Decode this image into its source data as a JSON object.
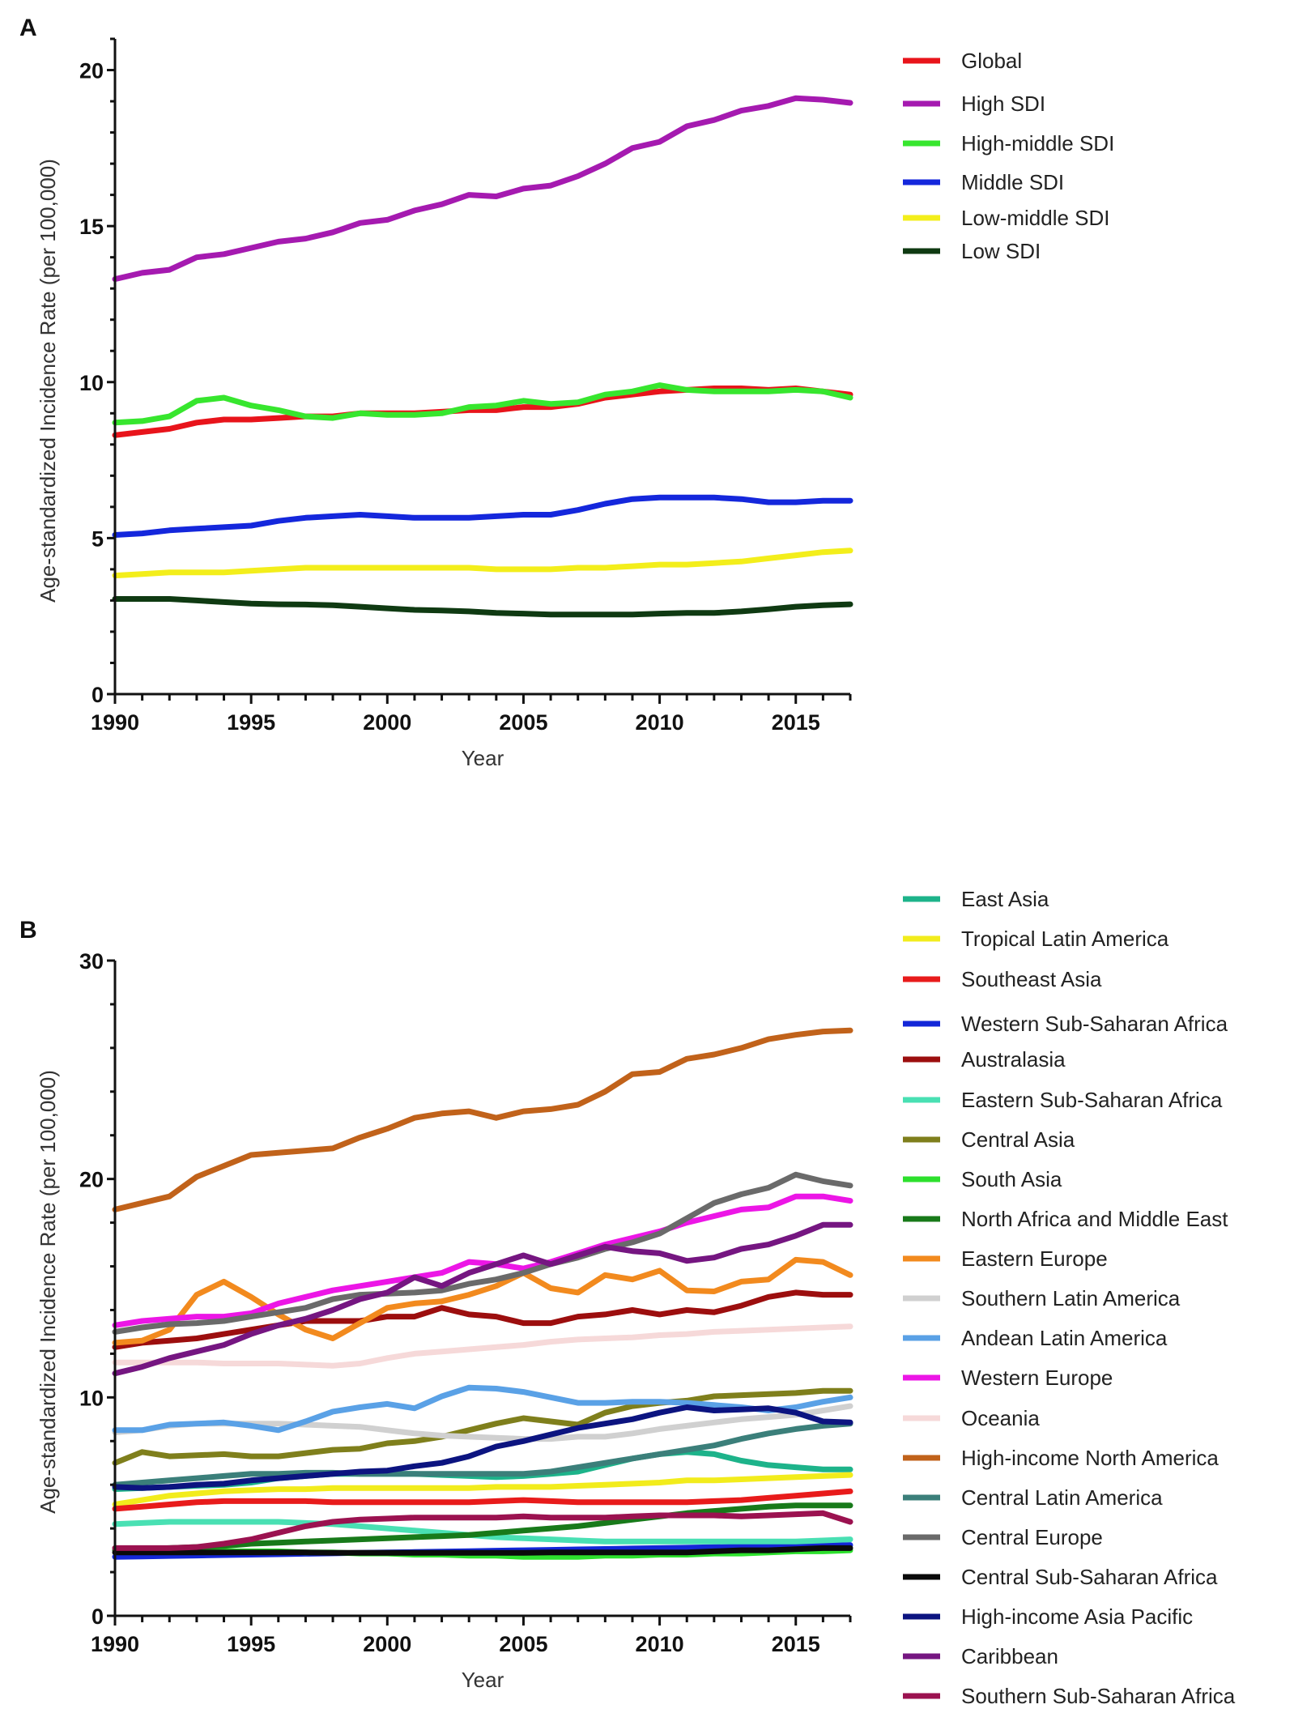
{
  "panels": [
    {
      "letter": "A",
      "xlabel": "Year",
      "ylabel": "Age-standardized Incidence Rate (per 100,000)"
    },
    {
      "letter": "B",
      "xlabel": "Year",
      "ylabel": "Age-standardized Incidence Rate (per 100,000)"
    }
  ],
  "chart_data": [
    {
      "type": "line",
      "panel": "A",
      "title": "",
      "xlabel": "Year",
      "ylabel": "Age-standardized Incidence Rate (per 100,000)",
      "x": [
        1990,
        1991,
        1992,
        1993,
        1994,
        1995,
        1996,
        1997,
        1998,
        1999,
        2000,
        2001,
        2002,
        2003,
        2004,
        2005,
        2006,
        2007,
        2008,
        2009,
        2010,
        2011,
        2012,
        2013,
        2014,
        2015,
        2016,
        2017
      ],
      "xlim": [
        1990,
        2017
      ],
      "ylim": [
        0,
        21
      ],
      "xticks": [
        1990,
        1995,
        2000,
        2005,
        2010,
        2015
      ],
      "yticks": [
        0,
        5,
        10,
        15,
        20
      ],
      "grid": false,
      "legend_position": "right",
      "series": [
        {
          "name": "Global",
          "color": "#e8141b",
          "values": [
            8.3,
            8.4,
            8.5,
            8.7,
            8.8,
            8.8,
            8.85,
            8.9,
            8.9,
            9.0,
            9.0,
            9.0,
            9.05,
            9.1,
            9.1,
            9.2,
            9.2,
            9.3,
            9.5,
            9.6,
            9.7,
            9.75,
            9.8,
            9.8,
            9.75,
            9.8,
            9.7,
            9.6
          ]
        },
        {
          "name": "High SDI",
          "color": "#a51ab0",
          "values": [
            13.3,
            13.5,
            13.6,
            14.0,
            14.1,
            14.3,
            14.5,
            14.6,
            14.8,
            15.1,
            15.2,
            15.5,
            15.7,
            16.0,
            15.95,
            16.2,
            16.3,
            16.6,
            17.0,
            17.5,
            17.7,
            18.2,
            18.4,
            18.7,
            18.85,
            19.1,
            19.05,
            18.95
          ]
        },
        {
          "name": "High-middle SDI",
          "color": "#37e62e",
          "values": [
            8.7,
            8.75,
            8.9,
            9.4,
            9.5,
            9.25,
            9.1,
            8.9,
            8.85,
            9.0,
            8.95,
            8.95,
            9.0,
            9.2,
            9.25,
            9.4,
            9.3,
            9.35,
            9.6,
            9.7,
            9.9,
            9.75,
            9.7,
            9.7,
            9.7,
            9.75,
            9.7,
            9.5
          ]
        },
        {
          "name": "Middle SDI",
          "color": "#1427dc",
          "values": [
            5.1,
            5.15,
            5.25,
            5.3,
            5.35,
            5.4,
            5.55,
            5.65,
            5.7,
            5.75,
            5.7,
            5.65,
            5.65,
            5.65,
            5.7,
            5.75,
            5.75,
            5.9,
            6.1,
            6.25,
            6.3,
            6.3,
            6.3,
            6.25,
            6.15,
            6.15,
            6.2,
            6.2
          ]
        },
        {
          "name": "Low-middle SDI",
          "color": "#f3ee1b",
          "values": [
            3.8,
            3.85,
            3.9,
            3.9,
            3.9,
            3.95,
            4.0,
            4.05,
            4.05,
            4.05,
            4.05,
            4.05,
            4.05,
            4.05,
            4.0,
            4.0,
            4.0,
            4.05,
            4.05,
            4.1,
            4.15,
            4.15,
            4.2,
            4.25,
            4.35,
            4.45,
            4.55,
            4.6
          ]
        },
        {
          "name": "Low SDI",
          "color": "#0f3a12",
          "values": [
            3.05,
            3.05,
            3.05,
            3.0,
            2.95,
            2.9,
            2.88,
            2.87,
            2.85,
            2.8,
            2.75,
            2.7,
            2.68,
            2.65,
            2.6,
            2.58,
            2.55,
            2.55,
            2.55,
            2.55,
            2.58,
            2.6,
            2.6,
            2.65,
            2.72,
            2.8,
            2.85,
            2.88
          ]
        }
      ]
    },
    {
      "type": "line",
      "panel": "B",
      "title": "",
      "xlabel": "Year",
      "ylabel": "Age-standardized Incidence Rate (per 100,000)",
      "x": [
        1990,
        1991,
        1992,
        1993,
        1994,
        1995,
        1996,
        1997,
        1998,
        1999,
        2000,
        2001,
        2002,
        2003,
        2004,
        2005,
        2006,
        2007,
        2008,
        2009,
        2010,
        2011,
        2012,
        2013,
        2014,
        2015,
        2016,
        2017
      ],
      "xlim": [
        1990,
        2017
      ],
      "ylim": [
        0,
        30
      ],
      "xticks": [
        1990,
        1995,
        2000,
        2005,
        2010,
        2015
      ],
      "yticks": [
        0,
        10,
        20,
        30
      ],
      "grid": false,
      "legend_position": "right",
      "series": [
        {
          "name": "East Asia",
          "color": "#1db38a",
          "values": [
            5.8,
            5.85,
            5.9,
            5.95,
            6.0,
            6.1,
            6.3,
            6.4,
            6.5,
            6.5,
            6.5,
            6.5,
            6.45,
            6.4,
            6.35,
            6.4,
            6.5,
            6.6,
            6.9,
            7.2,
            7.4,
            7.5,
            7.4,
            7.1,
            6.9,
            6.8,
            6.7,
            6.7
          ]
        },
        {
          "name": "Tropical Latin America",
          "color": "#f2ec1c",
          "values": [
            5.1,
            5.3,
            5.5,
            5.6,
            5.7,
            5.75,
            5.8,
            5.8,
            5.85,
            5.85,
            5.85,
            5.85,
            5.85,
            5.85,
            5.9,
            5.9,
            5.9,
            5.95,
            6.0,
            6.05,
            6.1,
            6.2,
            6.2,
            6.25,
            6.3,
            6.35,
            6.4,
            6.45
          ]
        },
        {
          "name": "Southeast Asia",
          "color": "#e81b1b",
          "values": [
            4.9,
            5.0,
            5.1,
            5.2,
            5.25,
            5.25,
            5.25,
            5.25,
            5.2,
            5.2,
            5.2,
            5.2,
            5.2,
            5.2,
            5.25,
            5.3,
            5.25,
            5.2,
            5.2,
            5.2,
            5.2,
            5.2,
            5.25,
            5.3,
            5.4,
            5.5,
            5.6,
            5.7
          ]
        },
        {
          "name": "Western Sub-Saharan Africa",
          "color": "#1327d8",
          "values": [
            2.7,
            2.72,
            2.74,
            2.76,
            2.78,
            2.8,
            2.82,
            2.84,
            2.86,
            2.88,
            2.9,
            2.92,
            2.94,
            2.96,
            2.98,
            3.0,
            3.02,
            3.04,
            3.06,
            3.08,
            3.1,
            3.12,
            3.14,
            3.16,
            3.18,
            3.2,
            3.22,
            3.24
          ]
        },
        {
          "name": "Australasia",
          "color": "#9c0e0e",
          "values": [
            12.3,
            12.5,
            12.6,
            12.7,
            12.9,
            13.1,
            13.3,
            13.5,
            13.5,
            13.5,
            13.7,
            13.7,
            14.1,
            13.8,
            13.7,
            13.4,
            13.4,
            13.7,
            13.8,
            14.0,
            13.8,
            14.0,
            13.9,
            14.2,
            14.6,
            14.8,
            14.7,
            14.7
          ]
        },
        {
          "name": "Eastern Sub-Saharan Africa",
          "color": "#49e0b3",
          "values": [
            4.2,
            4.25,
            4.3,
            4.3,
            4.3,
            4.3,
            4.3,
            4.25,
            4.2,
            4.1,
            4.0,
            3.9,
            3.8,
            3.7,
            3.6,
            3.55,
            3.5,
            3.45,
            3.4,
            3.4,
            3.4,
            3.4,
            3.4,
            3.4,
            3.4,
            3.4,
            3.45,
            3.5
          ]
        },
        {
          "name": "Central Asia",
          "color": "#7f7f1c",
          "values": [
            7.0,
            7.5,
            7.3,
            7.35,
            7.4,
            7.3,
            7.3,
            7.45,
            7.6,
            7.65,
            7.9,
            8.0,
            8.2,
            8.5,
            8.8,
            9.05,
            8.9,
            8.75,
            9.3,
            9.6,
            9.75,
            9.85,
            10.05,
            10.1,
            10.15,
            10.2,
            10.3,
            10.3
          ]
        },
        {
          "name": "South Asia",
          "color": "#2de02d",
          "values": [
            3.1,
            3.05,
            3.0,
            3.0,
            2.95,
            2.95,
            2.95,
            2.9,
            2.9,
            2.85,
            2.85,
            2.8,
            2.8,
            2.75,
            2.75,
            2.7,
            2.7,
            2.7,
            2.75,
            2.75,
            2.8,
            2.8,
            2.85,
            2.85,
            2.9,
            2.95,
            2.95,
            3.0
          ]
        },
        {
          "name": "North Africa and Middle East",
          "color": "#187a1a",
          "values": [
            3.0,
            3.05,
            3.1,
            3.15,
            3.2,
            3.3,
            3.35,
            3.4,
            3.45,
            3.5,
            3.55,
            3.6,
            3.65,
            3.7,
            3.8,
            3.9,
            4.0,
            4.1,
            4.25,
            4.4,
            4.55,
            4.7,
            4.8,
            4.9,
            5.0,
            5.05,
            5.05,
            5.05
          ]
        },
        {
          "name": "Eastern Europe",
          "color": "#f28a1e",
          "values": [
            12.5,
            12.6,
            13.1,
            14.7,
            15.3,
            14.6,
            13.8,
            13.1,
            12.7,
            13.4,
            14.1,
            14.3,
            14.4,
            14.7,
            15.1,
            15.7,
            15.0,
            14.8,
            15.6,
            15.4,
            15.8,
            14.9,
            14.85,
            15.3,
            15.4,
            16.3,
            16.2,
            15.6
          ]
        },
        {
          "name": "Southern Latin America",
          "color": "#d0d0d0",
          "values": [
            8.4,
            8.5,
            8.7,
            8.8,
            8.8,
            8.8,
            8.8,
            8.75,
            8.7,
            8.65,
            8.5,
            8.35,
            8.25,
            8.2,
            8.15,
            8.1,
            8.1,
            8.2,
            8.2,
            8.35,
            8.55,
            8.7,
            8.85,
            9.0,
            9.1,
            9.2,
            9.4,
            9.6
          ]
        },
        {
          "name": "Andean Latin America",
          "color": "#5aa1e6",
          "values": [
            8.5,
            8.5,
            8.75,
            8.8,
            8.85,
            8.7,
            8.5,
            8.9,
            9.35,
            9.55,
            9.7,
            9.5,
            10.05,
            10.45,
            10.4,
            10.25,
            10.0,
            9.75,
            9.75,
            9.8,
            9.8,
            9.75,
            9.65,
            9.55,
            9.4,
            9.55,
            9.8,
            10.0
          ]
        },
        {
          "name": "Western Europe",
          "color": "#ec16e6",
          "values": [
            13.3,
            13.5,
            13.6,
            13.7,
            13.7,
            13.85,
            14.3,
            14.6,
            14.9,
            15.1,
            15.3,
            15.5,
            15.7,
            16.2,
            16.1,
            15.9,
            16.2,
            16.6,
            17.0,
            17.3,
            17.6,
            18.0,
            18.3,
            18.6,
            18.7,
            19.2,
            19.2,
            19.0
          ]
        },
        {
          "name": "Oceania",
          "color": "#f6d9d9",
          "values": [
            11.6,
            11.6,
            11.6,
            11.6,
            11.55,
            11.55,
            11.55,
            11.5,
            11.45,
            11.55,
            11.8,
            12.0,
            12.1,
            12.2,
            12.3,
            12.4,
            12.55,
            12.65,
            12.7,
            12.75,
            12.85,
            12.9,
            13.0,
            13.05,
            13.1,
            13.15,
            13.2,
            13.25
          ]
        },
        {
          "name": "High-income North America",
          "color": "#c1621a",
          "values": [
            18.6,
            18.9,
            19.2,
            20.1,
            20.6,
            21.1,
            21.2,
            21.3,
            21.4,
            21.9,
            22.3,
            22.8,
            23.0,
            23.1,
            22.8,
            23.1,
            23.2,
            23.4,
            24.0,
            24.8,
            24.9,
            25.5,
            25.7,
            26.0,
            26.4,
            26.6,
            26.75,
            26.8
          ]
        },
        {
          "name": "Central Latin America",
          "color": "#3b7f7a",
          "values": [
            6.0,
            6.1,
            6.2,
            6.3,
            6.4,
            6.5,
            6.5,
            6.55,
            6.55,
            6.5,
            6.5,
            6.5,
            6.5,
            6.5,
            6.5,
            6.5,
            6.6,
            6.8,
            7.0,
            7.2,
            7.4,
            7.6,
            7.8,
            8.1,
            8.35,
            8.55,
            8.7,
            8.8
          ]
        },
        {
          "name": "Central Europe",
          "color": "#6a6a6a",
          "values": [
            13.0,
            13.2,
            13.35,
            13.4,
            13.5,
            13.7,
            13.9,
            14.1,
            14.5,
            14.7,
            14.75,
            14.8,
            14.9,
            15.2,
            15.4,
            15.7,
            16.1,
            16.4,
            16.8,
            17.1,
            17.5,
            18.2,
            18.9,
            19.3,
            19.6,
            20.2,
            19.9,
            19.7
          ]
        },
        {
          "name": "Central Sub-Saharan Africa",
          "color": "#0a0a0a",
          "values": [
            2.9,
            2.9,
            2.9,
            2.9,
            2.9,
            2.9,
            2.9,
            2.9,
            2.88,
            2.88,
            2.88,
            2.88,
            2.88,
            2.88,
            2.88,
            2.88,
            2.9,
            2.9,
            2.9,
            2.9,
            2.9,
            2.9,
            2.95,
            3.0,
            3.0,
            3.05,
            3.1,
            3.1
          ]
        },
        {
          "name": "High-income Asia Pacific",
          "color": "#0c1480",
          "values": [
            5.9,
            5.85,
            5.9,
            6.0,
            6.05,
            6.2,
            6.3,
            6.4,
            6.5,
            6.6,
            6.65,
            6.85,
            7.0,
            7.3,
            7.75,
            8.0,
            8.3,
            8.6,
            8.8,
            9.0,
            9.3,
            9.55,
            9.4,
            9.45,
            9.5,
            9.3,
            8.9,
            8.85
          ]
        },
        {
          "name": "Caribbean",
          "color": "#751681",
          "values": [
            11.1,
            11.4,
            11.8,
            12.1,
            12.4,
            12.9,
            13.3,
            13.6,
            14.0,
            14.5,
            14.8,
            15.5,
            15.1,
            15.7,
            16.1,
            16.5,
            16.1,
            16.5,
            16.9,
            16.7,
            16.6,
            16.25,
            16.4,
            16.8,
            17.0,
            17.4,
            17.9,
            17.9
          ]
        },
        {
          "name": "Southern Sub-Saharan Africa",
          "color": "#9b1250",
          "values": [
            3.1,
            3.1,
            3.1,
            3.15,
            3.3,
            3.5,
            3.8,
            4.1,
            4.3,
            4.4,
            4.45,
            4.5,
            4.5,
            4.5,
            4.5,
            4.55,
            4.5,
            4.5,
            4.5,
            4.55,
            4.6,
            4.6,
            4.6,
            4.55,
            4.6,
            4.65,
            4.7,
            4.3
          ]
        }
      ]
    }
  ]
}
